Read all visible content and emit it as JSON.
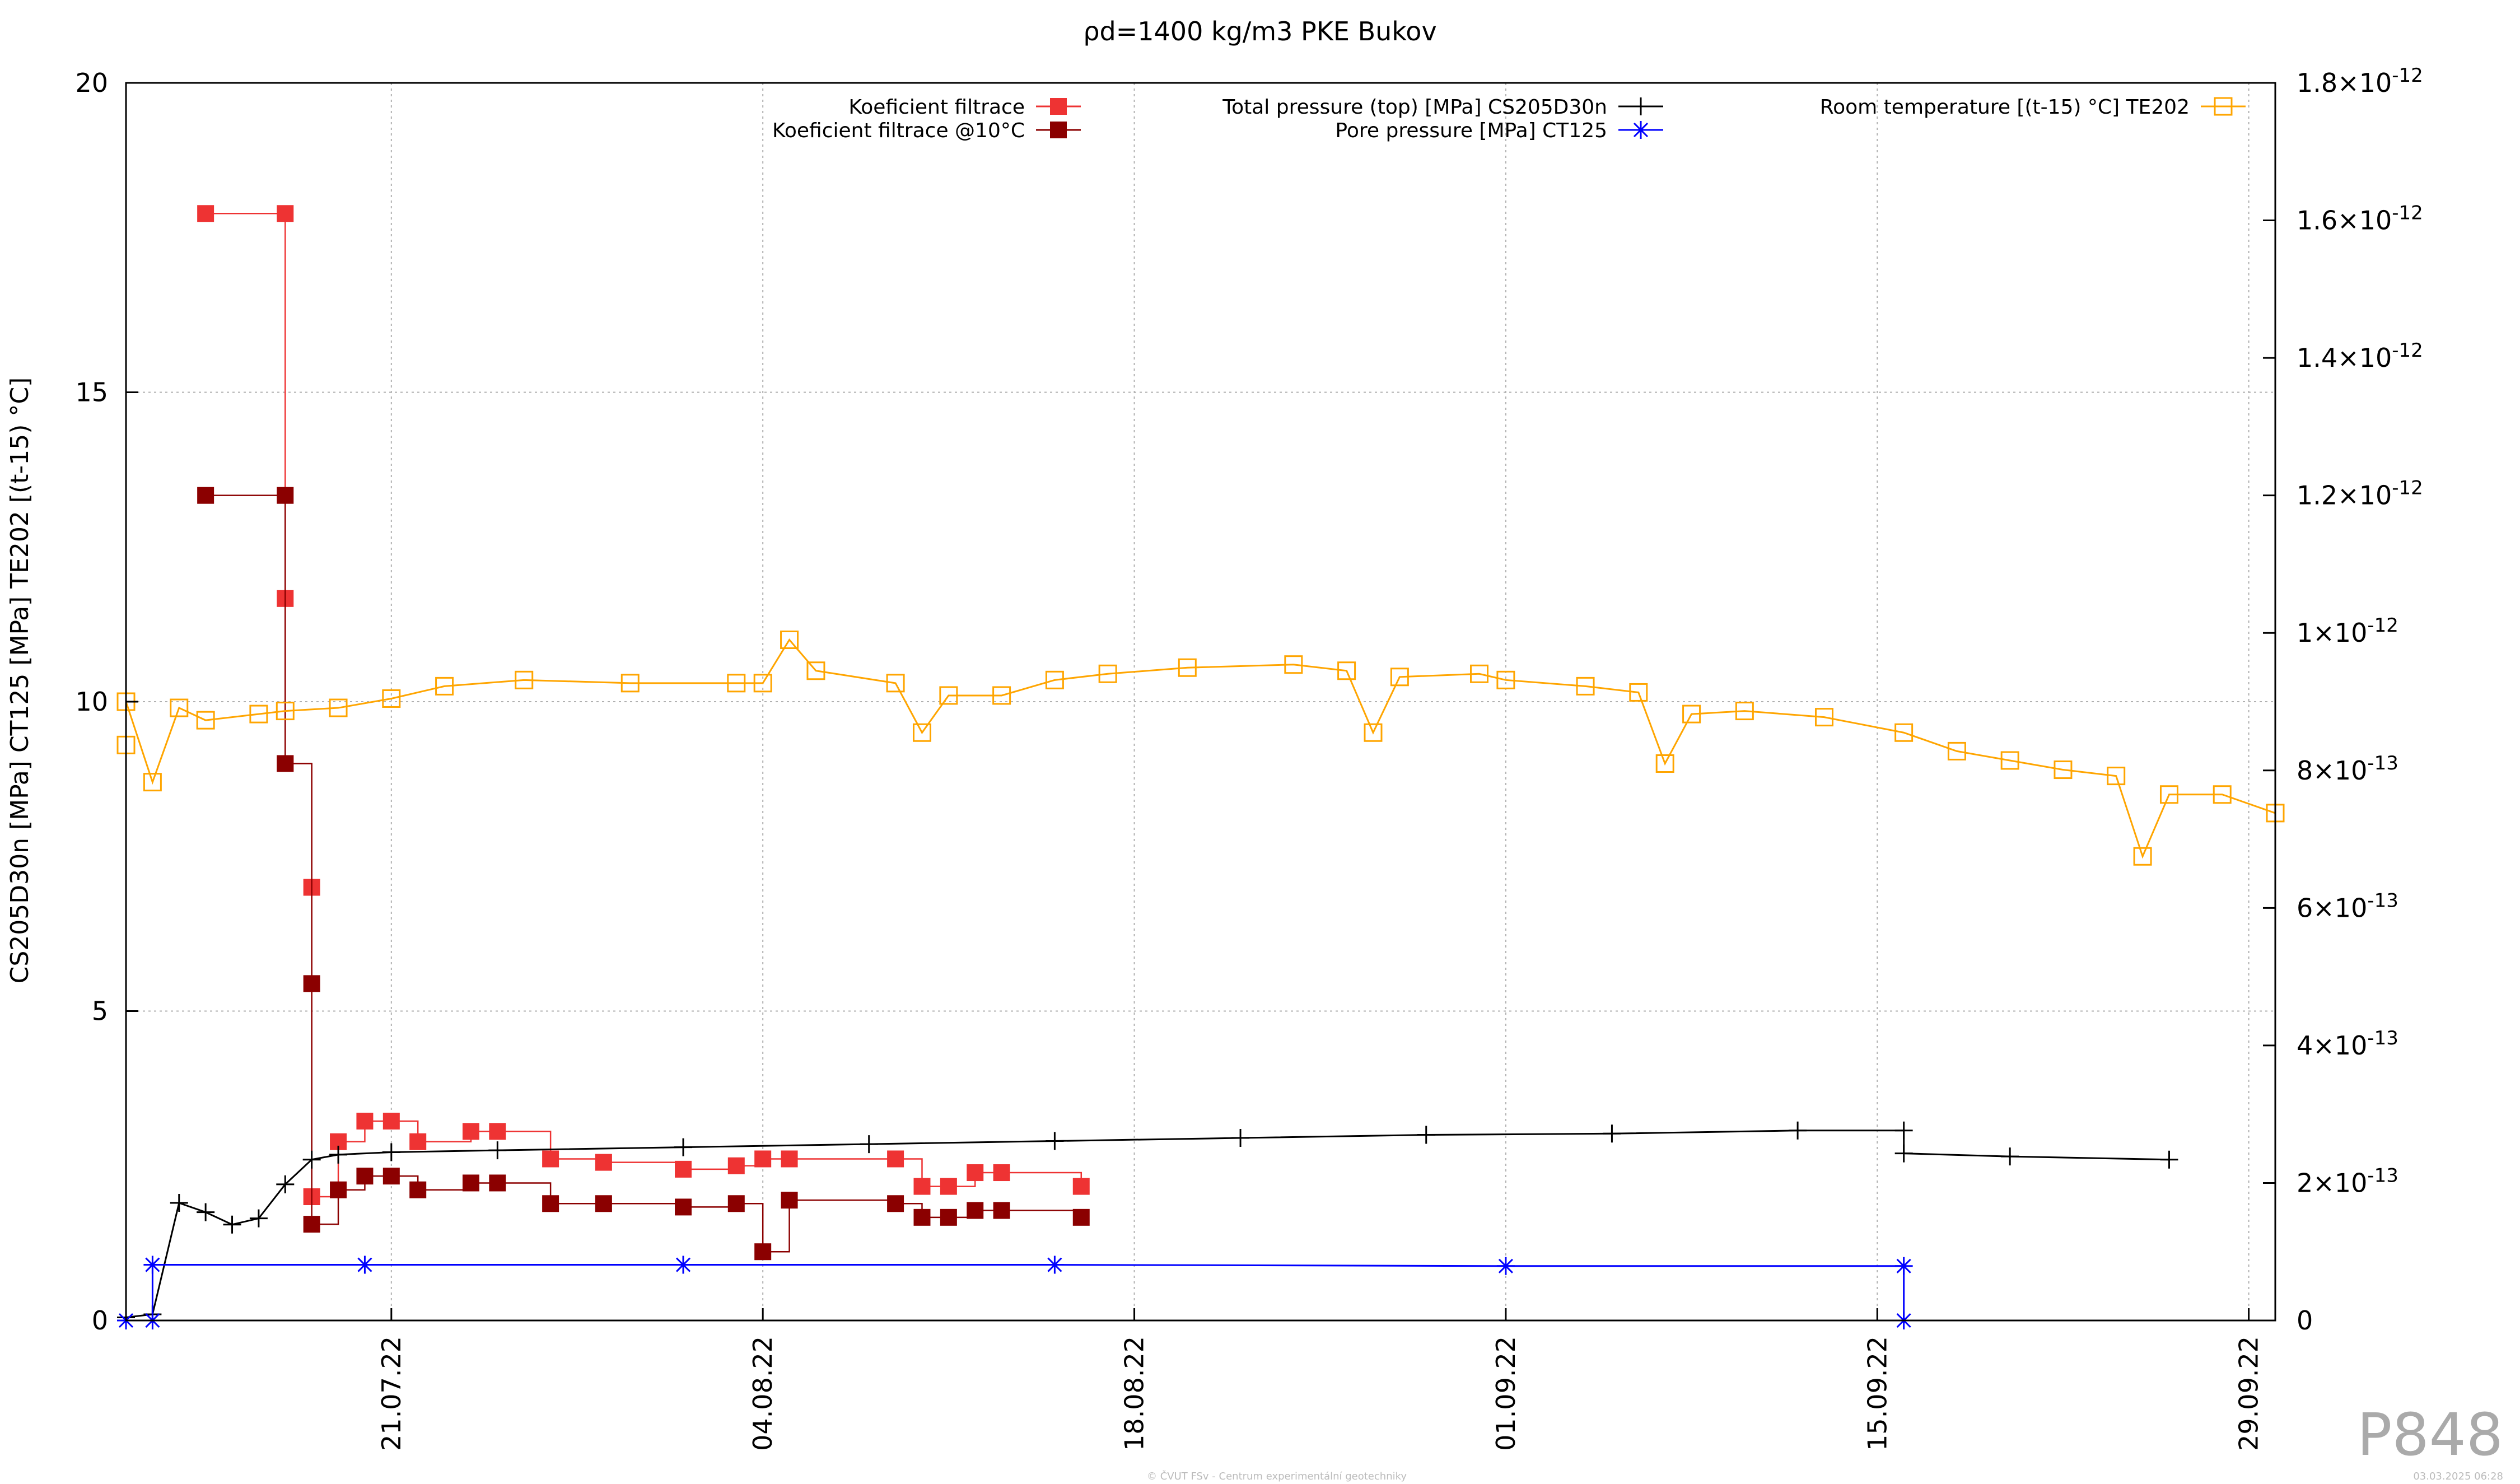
{
  "chart_data": {
    "type": "line",
    "title": "ρd=1400 kg/m3 PKE Bukov",
    "ylabel": "CS205D30n [MPa] CT125 [MPa] TE202 [(t-15) °C]",
    "ylim": [
      0,
      20
    ],
    "y_ticks": [
      "0",
      "5",
      "10",
      "15",
      "20"
    ],
    "y2lim": [
      0,
      1.8e-12
    ],
    "y2_ticks": [
      {
        "v": 0,
        "mant": "0",
        "exp": ""
      },
      {
        "v": 2e-13,
        "mant": "2×10",
        "exp": "-13"
      },
      {
        "v": 4e-13,
        "mant": "4×10",
        "exp": "-13"
      },
      {
        "v": 6e-13,
        "mant": "6×10",
        "exp": "-13"
      },
      {
        "v": 8e-13,
        "mant": "8×10",
        "exp": "-13"
      },
      {
        "v": 1e-12,
        "mant": "1×10",
        "exp": "-12"
      },
      {
        "v": 1.2e-12,
        "mant": "1.2×10",
        "exp": "-12"
      },
      {
        "v": 1.4e-12,
        "mant": "1.4×10",
        "exp": "-12"
      },
      {
        "v": 1.6e-12,
        "mant": "1.6×10",
        "exp": "-12"
      },
      {
        "v": 1.8e-12,
        "mant": "1.8×10",
        "exp": "-12"
      }
    ],
    "x_start": "2022-07-11",
    "x_end": "2022-09-30",
    "x_ticks": [
      {
        "date": "2022-07-21",
        "label": "21.07.22"
      },
      {
        "date": "2022-08-04",
        "label": "04.08.22"
      },
      {
        "date": "2022-08-18",
        "label": "18.08.22"
      },
      {
        "date": "2022-09-01",
        "label": "01.09.22"
      },
      {
        "date": "2022-09-15",
        "label": "15.09.22"
      },
      {
        "date": "2022-09-29",
        "label": "29.09.22"
      }
    ],
    "grid": true,
    "legend_position": "top",
    "series": [
      {
        "name": "Koeficient filtrace",
        "axis": "y2",
        "color": "#ee3333",
        "marker": "filled-square",
        "points": [
          [
            "2022-07-14",
            1.61e-12
          ],
          [
            "2022-07-17",
            1.61e-12
          ],
          [
            "2022-07-17",
            1.05e-12
          ],
          [
            "2022-07-17",
            8.1e-13
          ],
          [
            "2022-07-18",
            6.3e-13
          ],
          [
            "2022-07-18",
            1.8e-13
          ],
          [
            "2022-07-19",
            2.6e-13
          ],
          [
            "2022-07-20",
            2.9e-13
          ],
          [
            "2022-07-21",
            2.9e-13
          ],
          [
            "2022-07-22",
            2.6e-13
          ],
          [
            "2022-07-24",
            2.75e-13
          ],
          [
            "2022-07-25",
            2.75e-13
          ],
          [
            "2022-07-27",
            2.35e-13
          ],
          [
            "2022-07-29",
            2.3e-13
          ],
          [
            "2022-08-01",
            2.2e-13
          ],
          [
            "2022-08-03",
            2.25e-13
          ],
          [
            "2022-08-04",
            2.35e-13
          ],
          [
            "2022-08-05",
            2.35e-13
          ],
          [
            "2022-08-09",
            2.35e-13
          ],
          [
            "2022-08-10",
            1.95e-13
          ],
          [
            "2022-08-11",
            1.95e-13
          ],
          [
            "2022-08-12",
            2.15e-13
          ],
          [
            "2022-08-13",
            2.15e-13
          ],
          [
            "2022-08-16",
            1.95e-13
          ]
        ]
      },
      {
        "name": "Koeficient filtrace @10°C",
        "axis": "y2",
        "color": "#8b0000",
        "marker": "filled-square",
        "points": [
          [
            "2022-07-14",
            1.2e-12
          ],
          [
            "2022-07-17",
            1.2e-12
          ],
          [
            "2022-07-17",
            8.1e-13
          ],
          [
            "2022-07-18",
            4.9e-13
          ],
          [
            "2022-07-18",
            1.4e-13
          ],
          [
            "2022-07-19",
            1.9e-13
          ],
          [
            "2022-07-20",
            2.1e-13
          ],
          [
            "2022-07-21",
            2.1e-13
          ],
          [
            "2022-07-22",
            1.9e-13
          ],
          [
            "2022-07-24",
            2e-13
          ],
          [
            "2022-07-25",
            2e-13
          ],
          [
            "2022-07-27",
            1.7e-13
          ],
          [
            "2022-07-29",
            1.7e-13
          ],
          [
            "2022-08-01",
            1.65e-13
          ],
          [
            "2022-08-03",
            1.7e-13
          ],
          [
            "2022-08-04",
            1e-13
          ],
          [
            "2022-08-05",
            1.75e-13
          ],
          [
            "2022-08-09",
            1.7e-13
          ],
          [
            "2022-08-10",
            1.5e-13
          ],
          [
            "2022-08-11",
            1.5e-13
          ],
          [
            "2022-08-12",
            1.6e-13
          ],
          [
            "2022-08-13",
            1.6e-13
          ],
          [
            "2022-08-16",
            1.5e-13
          ]
        ]
      },
      {
        "name": "Total pressure (top) [MPa] CS205D30n",
        "axis": "y",
        "color": "#000000",
        "marker": "plus",
        "points": [
          [
            "2022-07-11",
            0.05
          ],
          [
            "2022-07-12",
            0.1
          ],
          [
            "2022-07-13",
            1.9
          ],
          [
            "2022-07-14",
            1.75
          ],
          [
            "2022-07-15",
            1.55
          ],
          [
            "2022-07-16",
            1.65
          ],
          [
            "2022-07-17",
            2.2
          ],
          [
            "2022-07-18",
            2.6
          ],
          [
            "2022-07-19",
            2.68
          ],
          [
            "2022-07-21",
            2.72
          ],
          [
            "2022-07-25",
            2.75
          ],
          [
            "2022-08-01",
            2.8
          ],
          [
            "2022-08-08",
            2.85
          ],
          [
            "2022-08-15",
            2.9
          ],
          [
            "2022-08-22",
            2.95
          ],
          [
            "2022-08-29",
            3.0
          ],
          [
            "2022-09-05",
            3.02
          ],
          [
            "2022-09-12",
            3.07
          ],
          [
            "2022-09-16",
            3.07
          ],
          [
            "2022-09-16",
            2.7
          ],
          [
            "2022-09-20",
            2.65
          ],
          [
            "2022-09-26",
            2.6
          ]
        ]
      },
      {
        "name": "Pore pressure [MPa] CT125",
        "axis": "y",
        "color": "#0000ff",
        "marker": "star",
        "points": [
          [
            "2022-07-11",
            0.0
          ],
          [
            "2022-07-12",
            0.0
          ],
          [
            "2022-07-12",
            0.9
          ],
          [
            "2022-07-20",
            0.9
          ],
          [
            "2022-08-01",
            0.9
          ],
          [
            "2022-08-15",
            0.9
          ],
          [
            "2022-09-01",
            0.88
          ],
          [
            "2022-09-16",
            0.88
          ],
          [
            "2022-09-16",
            0.0
          ]
        ]
      },
      {
        "name": "Room temperature [(t-15) °C] TE202",
        "axis": "y",
        "color": "#ffa500",
        "marker": "open-square",
        "points": [
          [
            "2022-07-11",
            9.3
          ],
          [
            "2022-07-11",
            10.0
          ],
          [
            "2022-07-12",
            8.7
          ],
          [
            "2022-07-13",
            9.9
          ],
          [
            "2022-07-14",
            9.7
          ],
          [
            "2022-07-16",
            9.8
          ],
          [
            "2022-07-17",
            9.85
          ],
          [
            "2022-07-19",
            9.9
          ],
          [
            "2022-07-21",
            10.05
          ],
          [
            "2022-07-23",
            10.25
          ],
          [
            "2022-07-26",
            10.35
          ],
          [
            "2022-07-30",
            10.3
          ],
          [
            "2022-08-03",
            10.3
          ],
          [
            "2022-08-04",
            10.3
          ],
          [
            "2022-08-05",
            11.0
          ],
          [
            "2022-08-06",
            10.5
          ],
          [
            "2022-08-09",
            10.3
          ],
          [
            "2022-08-10",
            9.5
          ],
          [
            "2022-08-11",
            10.1
          ],
          [
            "2022-08-13",
            10.1
          ],
          [
            "2022-08-15",
            10.35
          ],
          [
            "2022-08-17",
            10.45
          ],
          [
            "2022-08-20",
            10.55
          ],
          [
            "2022-08-24",
            10.6
          ],
          [
            "2022-08-26",
            10.5
          ],
          [
            "2022-08-27",
            9.5
          ],
          [
            "2022-08-28",
            10.4
          ],
          [
            "2022-08-31",
            10.45
          ],
          [
            "2022-09-01",
            10.35
          ],
          [
            "2022-09-04",
            10.25
          ],
          [
            "2022-09-06",
            10.15
          ],
          [
            "2022-09-07",
            9.0
          ],
          [
            "2022-09-08",
            9.8
          ],
          [
            "2022-09-10",
            9.85
          ],
          [
            "2022-09-13",
            9.75
          ],
          [
            "2022-09-16",
            9.5
          ],
          [
            "2022-09-18",
            9.2
          ],
          [
            "2022-09-20",
            9.05
          ],
          [
            "2022-09-22",
            8.9
          ],
          [
            "2022-09-24",
            8.8
          ],
          [
            "2022-09-25",
            7.5
          ],
          [
            "2022-09-26",
            8.5
          ],
          [
            "2022-09-28",
            8.5
          ],
          [
            "2022-09-30",
            8.2
          ]
        ]
      }
    ]
  },
  "watermark": "P848",
  "footer_center": "© ČVUT FSv - Centrum experimentální geotechniky",
  "footer_right": "03.03.2025 06:28"
}
